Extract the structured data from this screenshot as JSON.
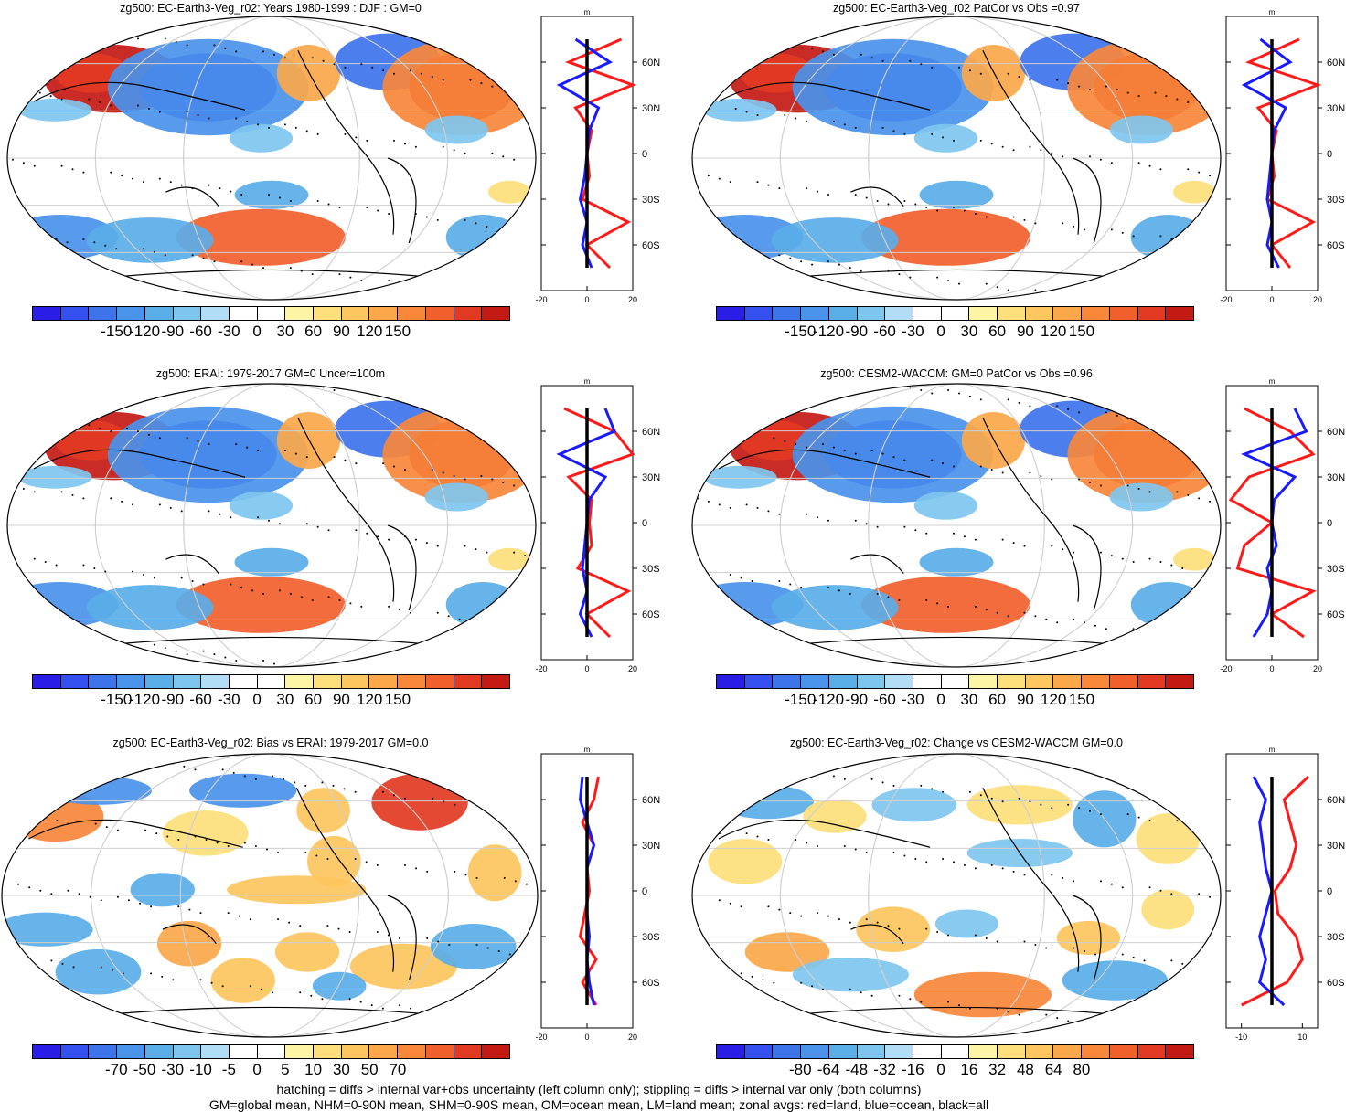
{
  "colors": {
    "main_scale": [
      "#2a1ee6",
      "#3450ef",
      "#3d74ec",
      "#4a93ea",
      "#5aaee8",
      "#7fc6ef",
      "#b3dcf6",
      "#ffffff",
      "#ffffff",
      "#fdf4a6",
      "#fde07b",
      "#fdc65e",
      "#fba74a",
      "#f8873a",
      "#f1602c",
      "#e23a22",
      "#c41a14"
    ],
    "land": "#ff1a1a",
    "ocean": "#1a1aff",
    "all": "#000000"
  },
  "panels": [
    {
      "title": "zg500: EC-Earth3-Veg_r02: Years 1980-1999 : DJF : GM=0",
      "colorbar_labels": [
        "-150",
        "-120",
        "-90",
        "-60",
        "-30",
        "0",
        "30",
        "60",
        "90",
        "120",
        "150"
      ],
      "scale": "main",
      "zonal_ticks": [
        "-20",
        "0",
        "20"
      ]
    },
    {
      "title": "zg500: EC-Earth3-Veg_r02 PatCor vs Obs =0.97",
      "colorbar_labels": [
        "-150",
        "-120",
        "-90",
        "-60",
        "-30",
        "0",
        "30",
        "60",
        "90",
        "120",
        "150"
      ],
      "scale": "main",
      "zonal_ticks": [
        "-20",
        "0",
        "20"
      ]
    },
    {
      "title": "zg500: ERAI: 1979-2017 GM=0 Uncer=100m",
      "colorbar_labels": [
        "-150",
        "-120",
        "-90",
        "-60",
        "-30",
        "0",
        "30",
        "60",
        "90",
        "120",
        "150"
      ],
      "scale": "main",
      "zonal_ticks": [
        "-20",
        "0",
        "20"
      ]
    },
    {
      "title": "zg500: CESM2-WACCM: GM=0 PatCor vs Obs =0.96",
      "colorbar_labels": [
        "-150",
        "-120",
        "-90",
        "-60",
        "-30",
        "0",
        "30",
        "60",
        "90",
        "120",
        "150"
      ],
      "scale": "main",
      "zonal_ticks": [
        "-20",
        "0",
        "20"
      ]
    },
    {
      "title": "zg500: EC-Earth3-Veg_r02: Bias vs ERAI: 1979-2017 GM=0.0",
      "colorbar_labels": [
        "-70",
        "-50",
        "-30",
        "-10",
        "-5",
        "0",
        "5",
        "10",
        "30",
        "50",
        "70"
      ],
      "scale": "main",
      "zonal_ticks": [
        "-20",
        "0",
        "20"
      ]
    },
    {
      "title": "zg500: EC-Earth3-Veg_r02: Change vs CESM2-WACCM GM=0.0",
      "colorbar_labels": [
        "-80",
        "-64",
        "-48",
        "-32",
        "-16",
        "0",
        "16",
        "32",
        "48",
        "64",
        "80"
      ],
      "scale": "main",
      "zonal_ticks": [
        "-10",
        "10"
      ]
    }
  ],
  "lat_labels": [
    "60N",
    "30N",
    "0",
    "30S",
    "60S"
  ],
  "zonal_unit": "m",
  "notes": {
    "line1": "hatching = diffs > internal var+obs uncertainty (left column only); stippling = diffs > internal var only (both columns)",
    "line2": "GM=global mean, NHM=0-90N mean, SHM=0-90S mean, OM=ocean mean, LM=land mean; zonal avgs: red=land, blue=ocean, black=all"
  },
  "chart_data": [
    {
      "type": "heatmap",
      "title": "zg500: EC-Earth3-Veg_r02: Years 1980-1999 : DJF : GM=0",
      "colorbar": [
        -150,
        -120,
        -90,
        -60,
        -30,
        0,
        30,
        60,
        90,
        120,
        150
      ],
      "zonal_avg": {
        "lat": [
          75,
          60,
          45,
          30,
          15,
          0,
          -15,
          -30,
          -45,
          -60,
          -75
        ],
        "land": [
          15,
          -8,
          20,
          -5,
          2,
          0,
          1,
          -2,
          18,
          0,
          10
        ],
        "ocean": [
          -5,
          10,
          -12,
          5,
          1,
          0,
          -1,
          -3,
          0,
          -2,
          2
        ],
        "all": [
          0,
          0,
          0,
          0,
          0,
          0,
          0,
          0,
          0,
          0,
          0
        ],
        "xlim": [
          -20,
          20
        ]
      }
    },
    {
      "type": "heatmap",
      "title": "zg500: EC-Earth3-Veg_r02 PatCor vs Obs =0.97",
      "colorbar": [
        -150,
        -120,
        -90,
        -60,
        -30,
        0,
        30,
        60,
        90,
        120,
        150
      ],
      "zonal_avg": {
        "lat": [
          75,
          60,
          45,
          30,
          15,
          0,
          -15,
          -30,
          -45,
          -60,
          -75
        ],
        "land": [
          12,
          -10,
          20,
          -6,
          2,
          0,
          1,
          -2,
          18,
          0,
          8
        ],
        "ocean": [
          -5,
          8,
          -12,
          6,
          1,
          0,
          -1,
          -2,
          0,
          -2,
          3
        ],
        "all": [
          0,
          0,
          0,
          0,
          0,
          0,
          0,
          0,
          0,
          0,
          0
        ],
        "xlim": [
          -20,
          20
        ]
      }
    },
    {
      "type": "heatmap",
      "title": "zg500: ERAI: 1979-2017 GM=0 Uncer=100m",
      "colorbar": [
        -150,
        -120,
        -90,
        -60,
        -30,
        0,
        30,
        60,
        90,
        120,
        150
      ],
      "zonal_avg": {
        "lat": [
          75,
          60,
          45,
          30,
          15,
          0,
          -15,
          -30,
          -45,
          -60,
          -75
        ],
        "land": [
          -10,
          12,
          20,
          -8,
          2,
          1,
          2,
          -4,
          18,
          0,
          10
        ],
        "ocean": [
          8,
          12,
          -12,
          8,
          1,
          0,
          -1,
          -2,
          0,
          -3,
          2
        ],
        "all": [
          0,
          0,
          0,
          0,
          0,
          0,
          0,
          0,
          0,
          0,
          0
        ],
        "xlim": [
          -20,
          20
        ]
      }
    },
    {
      "type": "heatmap",
      "title": "zg500: CESM2-WACCM: GM=0 PatCor vs Obs =0.96",
      "colorbar": [
        -150,
        -120,
        -90,
        -60,
        -30,
        0,
        30,
        60,
        90,
        120,
        150
      ],
      "zonal_avg": {
        "lat": [
          75,
          60,
          45,
          30,
          15,
          0,
          -15,
          -30,
          -45,
          -60,
          -75
        ],
        "land": [
          -12,
          8,
          18,
          -10,
          -18,
          0,
          -12,
          -15,
          18,
          0,
          14
        ],
        "ocean": [
          10,
          15,
          -12,
          10,
          1,
          0,
          2,
          -2,
          0,
          -2,
          -8
        ],
        "all": [
          0,
          0,
          0,
          0,
          0,
          0,
          0,
          0,
          0,
          0,
          0
        ],
        "xlim": [
          -20,
          20
        ]
      }
    },
    {
      "type": "heatmap",
      "title": "zg500: EC-Earth3-Veg_r02: Bias vs ERAI: 1979-2017 GM=0.0",
      "colorbar": [
        -70,
        -50,
        -30,
        -10,
        -5,
        0,
        5,
        10,
        30,
        50,
        70
      ],
      "zonal_avg": {
        "lat": [
          75,
          60,
          45,
          30,
          15,
          0,
          -15,
          -30,
          -45,
          -60,
          -75
        ],
        "land": [
          5,
          3,
          -2,
          3,
          0,
          1,
          -1,
          -3,
          4,
          -2,
          4
        ],
        "ocean": [
          -2,
          -3,
          0,
          3,
          0,
          0,
          0,
          1,
          0,
          1,
          3
        ],
        "all": [
          0,
          0,
          0,
          0,
          0,
          0,
          0,
          0,
          0,
          0,
          0
        ],
        "xlim": [
          -20,
          20
        ]
      }
    },
    {
      "type": "heatmap",
      "title": "zg500: EC-Earth3-Veg_r02: Change vs CESM2-WACCM GM=0.0",
      "colorbar": [
        -80,
        -64,
        -48,
        -32,
        -16,
        0,
        16,
        32,
        48,
        64,
        80
      ],
      "zonal_avg": {
        "lat": [
          75,
          60,
          45,
          30,
          15,
          0,
          -15,
          -30,
          -45,
          -60,
          -75
        ],
        "land": [
          12,
          4,
          6,
          8,
          6,
          1,
          2,
          8,
          10,
          5,
          -10
        ],
        "ocean": [
          -6,
          -2,
          -4,
          -3,
          -2,
          0,
          -2,
          -4,
          -2,
          -4,
          4
        ],
        "all": [
          0,
          0,
          0,
          0,
          0,
          0,
          0,
          0,
          0,
          0,
          0
        ],
        "xlim": [
          -15,
          15
        ]
      }
    }
  ]
}
